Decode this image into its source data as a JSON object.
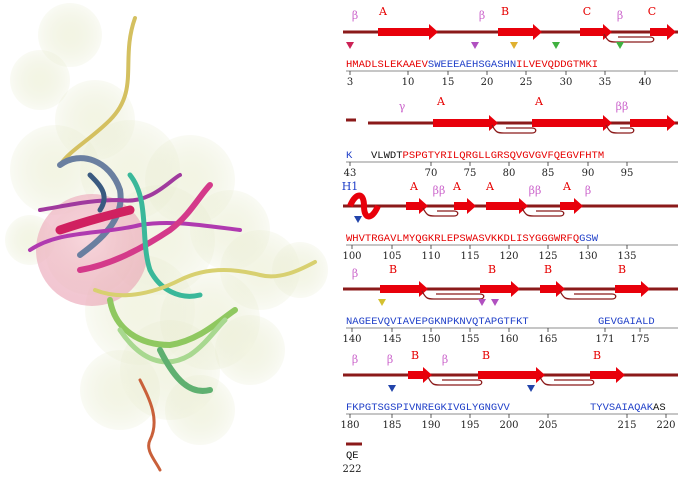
{
  "colors": {
    "helix_strand": "#e8000b",
    "backbone": "#8b1a1a",
    "sse_label_red": "#e60000",
    "beta_label": "#cc66cc",
    "gamma_label": "#cc66cc",
    "helix_label_blue": "#1f3fc8",
    "seq_red": "#e60000",
    "seq_blue": "#1f3fc8",
    "seq_black": "#111111"
  },
  "structure_panel": {
    "description_icon": "protein-cartoon-image"
  },
  "rows": [
    {
      "sse_labels": [
        "β",
        "A",
        "β",
        "B",
        "C",
        "β",
        "C"
      ],
      "sequence": {
        "red1": "HMADLSLEKAAEV",
        "blue1": "SWEEEAEHSGASHN",
        "red2": "ILVEVQDDGTMKI"
      },
      "numbers": [
        "3",
        "10",
        "15",
        "20",
        "25",
        "30",
        "35",
        "40"
      ]
    },
    {
      "sse_labels": [
        "γ",
        "A",
        "A",
        "ββ"
      ],
      "sequence": {
        "blue1": "K",
        "black1": "VLWDT",
        "red1": "PSPGTYRILQRGLLGRSQVGVGVFQEGVFHTM"
      },
      "numbers": [
        "43",
        "70",
        "75",
        "80",
        "85",
        "90",
        "95"
      ]
    },
    {
      "sse_labels": [
        "H1",
        "A",
        "ββ",
        "A",
        "A",
        "ββ",
        "A",
        "β"
      ],
      "sequence": {
        "red1": "WHVTRGAVLMYQGKRLEPSWASVKKDLISYGGGWRFQ",
        "blue1": "GSW"
      },
      "numbers": [
        "100",
        "105",
        "110",
        "115",
        "120",
        "125",
        "130",
        "135"
      ]
    },
    {
      "sse_labels": [
        "β",
        "B",
        "B",
        "B",
        "B"
      ],
      "sequence": {
        "blue1": "NAGEEVQVIAVEPGKNPKNVQTAPGTFKT",
        "blue2": "GEVGAIALD"
      },
      "numbers": [
        "140",
        "145",
        "150",
        "155",
        "160",
        "165",
        "171",
        "175"
      ]
    },
    {
      "sse_labels": [
        "β",
        "β",
        "B",
        "β",
        "B",
        "B"
      ],
      "sequence": {
        "blue1": "FKPGTSGSPIVNREGKIVGLYGNGVV",
        "blue2": "TYVSAIAQAK",
        "black1": "AS"
      },
      "numbers": [
        "180",
        "185",
        "190",
        "195",
        "200",
        "205",
        "215",
        "220"
      ]
    },
    {
      "sse_labels": [],
      "sequence": {
        "blue1": "QE"
      },
      "numbers": [
        "222"
      ]
    }
  ]
}
